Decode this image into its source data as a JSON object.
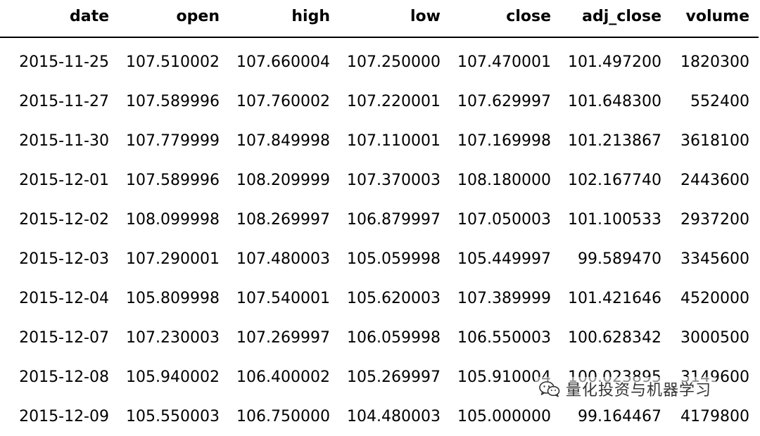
{
  "table": {
    "columns": [
      "date",
      "open",
      "high",
      "low",
      "close",
      "adj_close",
      "volume"
    ],
    "rows": [
      [
        "2015-11-25",
        "107.510002",
        "107.660004",
        "107.250000",
        "107.470001",
        "101.497200",
        "1820300"
      ],
      [
        "2015-11-27",
        "107.589996",
        "107.760002",
        "107.220001",
        "107.629997",
        "101.648300",
        "552400"
      ],
      [
        "2015-11-30",
        "107.779999",
        "107.849998",
        "107.110001",
        "107.169998",
        "101.213867",
        "3618100"
      ],
      [
        "2015-12-01",
        "107.589996",
        "108.209999",
        "107.370003",
        "108.180000",
        "102.167740",
        "2443600"
      ],
      [
        "2015-12-02",
        "108.099998",
        "108.269997",
        "106.879997",
        "107.050003",
        "101.100533",
        "2937200"
      ],
      [
        "2015-12-03",
        "107.290001",
        "107.480003",
        "105.059998",
        "105.449997",
        "99.589470",
        "3345600"
      ],
      [
        "2015-12-04",
        "105.809998",
        "107.540001",
        "105.620003",
        "107.389999",
        "101.421646",
        "4520000"
      ],
      [
        "2015-12-07",
        "107.230003",
        "107.269997",
        "106.059998",
        "106.550003",
        "100.628342",
        "3000500"
      ],
      [
        "2015-12-08",
        "105.940002",
        "106.400002",
        "105.269997",
        "105.910004",
        "100.023895",
        "3149600"
      ],
      [
        "2015-12-09",
        "105.550003",
        "106.750000",
        "104.480003",
        "105.000000",
        "99.164467",
        "4179800"
      ]
    ]
  },
  "watermark": {
    "icon": "wechat-icon",
    "text": "量化投资与机器学习"
  }
}
